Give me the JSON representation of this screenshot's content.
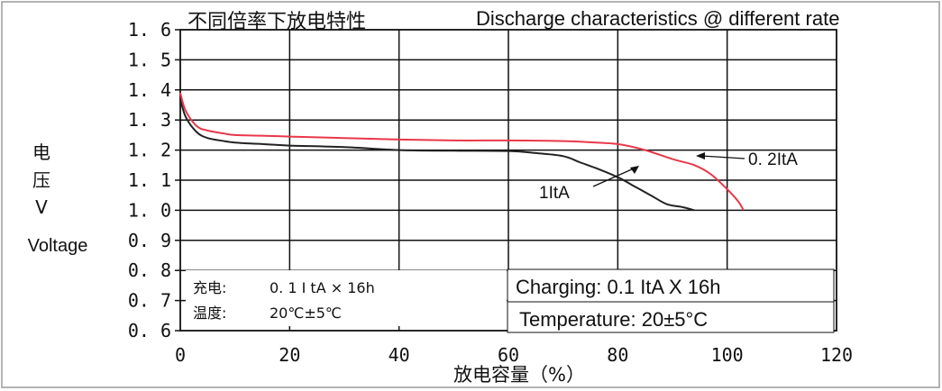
{
  "colors": {
    "grid": "#111111",
    "series_1ItA": "#222222",
    "series_02ItA": "#e8384a",
    "border": "#9a9a9a"
  },
  "chart_data": {
    "type": "line",
    "title_cn": "不同倍率下放电特性",
    "title_en": "Discharge characteristics @ different rate",
    "ylabel_cn_1": "电",
    "ylabel_cn_2": "压",
    "ylabel_unit": "V",
    "ylabel_en": "Voltage",
    "xlabel": "放电容量（%）",
    "xlim": [
      0,
      120
    ],
    "ylim": [
      0.6,
      1.6
    ],
    "xticks": [
      0,
      20,
      40,
      60,
      80,
      100,
      120
    ],
    "xtick_labels": [
      "0",
      "20",
      "40",
      "60",
      "80",
      "100",
      "120"
    ],
    "yticks": [
      0.6,
      0.7,
      0.8,
      0.9,
      1.0,
      1.1,
      1.2,
      1.3,
      1.4,
      1.5,
      1.6
    ],
    "ytick_labels": [
      "0. 6",
      "0. 7",
      "0. 8",
      "0. 9",
      "1. 0",
      "1. 1",
      "1. 2",
      "1. 3",
      "1. 4",
      "1. 5",
      "1. 6"
    ],
    "grid": true,
    "series": [
      {
        "name": "1ItA",
        "x": [
          0,
          1,
          3,
          5,
          8,
          10,
          15,
          20,
          30,
          40,
          50,
          60,
          65,
          70,
          73,
          76,
          80,
          83,
          86,
          89,
          92,
          94
        ],
        "y": [
          1.37,
          1.31,
          1.26,
          1.24,
          1.23,
          1.225,
          1.22,
          1.215,
          1.21,
          1.2,
          1.198,
          1.197,
          1.19,
          1.18,
          1.16,
          1.14,
          1.11,
          1.08,
          1.05,
          1.02,
          1.01,
          1.0
        ]
      },
      {
        "name": "0. 2ItA",
        "x": [
          0,
          1,
          3,
          5,
          8,
          10,
          15,
          20,
          30,
          40,
          50,
          60,
          70,
          75,
          80,
          85,
          90,
          94,
          97,
          100,
          102,
          103
        ],
        "y": [
          1.39,
          1.33,
          1.28,
          1.265,
          1.255,
          1.25,
          1.248,
          1.245,
          1.24,
          1.235,
          1.232,
          1.232,
          1.23,
          1.226,
          1.22,
          1.2,
          1.17,
          1.15,
          1.12,
          1.07,
          1.03,
          1.0
        ]
      }
    ],
    "annotations": {
      "charge_cn_label": "充电:",
      "charge_cn_value": "0. 1 I tA × 16h",
      "temp_cn_label": "温度:",
      "temp_cn_value": "20℃±5℃",
      "charge_en": "Charging: 0.1 ItA X 16h",
      "temp_en": "Temperature: 20±5°C"
    }
  }
}
